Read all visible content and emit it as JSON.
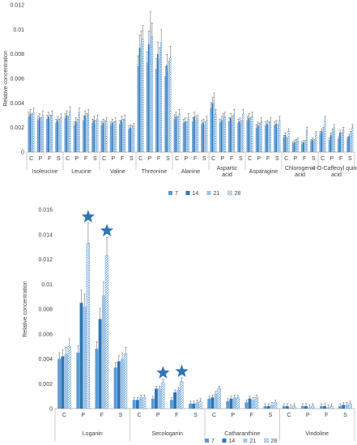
{
  "colors": {
    "d7": "#5b9bd5",
    "d14": "#2e75b6",
    "d21": "#9dc3e6",
    "d28": "#5b9bd5",
    "axis": "#bfbfbf",
    "text": "#404040",
    "star": "#2e75b6"
  },
  "chart_data": [
    {
      "type": "bar",
      "title": "",
      "ylabel": "Relative concentration",
      "ylim": [
        0,
        0.012
      ],
      "yticks": [
        "0",
        "0.002",
        "0.004",
        "0.006",
        "0.008",
        "0.01",
        "0.012"
      ],
      "subcategories": [
        "C",
        "P",
        "F",
        "S"
      ],
      "groups": [
        "Isoleucine",
        "Leucine",
        "Valine",
        "Threonine",
        "Alanine",
        "Aspartic acid",
        "Asparagine",
        "Chlorogenic acid",
        "4-O-Caffeoyl quinic acid"
      ],
      "legend": [
        "7",
        "14",
        "21",
        "28"
      ],
      "legend_position": "bottom",
      "series": [
        {
          "name": "7",
          "values": [
            [
              0.0029,
              0.0026,
              0.0027,
              0.0024
            ],
            [
              0.0028,
              0.0022,
              0.0026,
              0.0024
            ],
            [
              0.0022,
              0.0022,
              0.0023,
              0.0019
            ],
            [
              0.007,
              0.0073,
              0.0068,
              0.0062
            ],
            [
              0.0027,
              0.0024,
              0.0025,
              0.0023
            ],
            [
              0.0036,
              0.0024,
              0.0025,
              0.0024
            ],
            [
              0.0026,
              0.002,
              0.0022,
              0.0022
            ],
            [
              0.0012,
              0.0007,
              0.0007,
              0.0009
            ],
            [
              0.0015,
              0.001,
              0.0011,
              0.0011
            ]
          ]
        },
        {
          "name": "14",
          "values": [
            [
              0.0031,
              0.0028,
              0.0029,
              0.0026
            ],
            [
              0.003,
              0.0025,
              0.003,
              0.0026
            ],
            [
              0.0024,
              0.0024,
              0.0026,
              0.002
            ],
            [
              0.0085,
              0.0088,
              0.008,
              0.0071
            ],
            [
              0.0029,
              0.0025,
              0.0029,
              0.0024
            ],
            [
              0.004,
              0.0026,
              0.0028,
              0.0025
            ],
            [
              0.0028,
              0.0022,
              0.0023,
              0.0023
            ],
            [
              0.0014,
              0.0008,
              0.0008,
              0.001
            ],
            [
              0.0017,
              0.0014,
              0.0016,
              0.0013
            ]
          ]
        },
        {
          "name": "21",
          "values": [
            [
              0.0028,
              0.0025,
              0.0027,
              0.0024
            ],
            [
              0.0026,
              0.0024,
              0.0028,
              0.0023
            ],
            [
              0.0023,
              0.0022,
              0.0024,
              0.0019
            ],
            [
              0.0088,
              0.0102,
              0.0076,
              0.0066
            ],
            [
              0.0026,
              0.0022,
              0.0026,
              0.0022
            ],
            [
              0.0043,
              0.0028,
              0.0026,
              0.0023
            ],
            [
              0.0025,
              0.0021,
              0.0022,
              0.002
            ],
            [
              0.001,
              0.0009,
              0.0008,
              0.0009
            ],
            [
              0.0018,
              0.0017,
              0.0014,
              0.0015
            ]
          ]
        },
        {
          "name": "28",
          "values": [
            [
              0.0032,
              0.003,
              0.003,
              0.0028
            ],
            [
              0.0033,
              0.0032,
              0.0031,
              0.0027
            ],
            [
              0.0025,
              0.0025,
              0.0027,
              0.0021
            ],
            [
              0.0092,
              0.0094,
              0.0089,
              0.0077
            ],
            [
              0.0031,
              0.0028,
              0.0027,
              0.0026
            ],
            [
              0.0031,
              0.0029,
              0.0031,
              0.0031
            ],
            [
              0.0029,
              0.0025,
              0.0025,
              0.0026
            ],
            [
              0.0017,
              0.001,
              0.0018,
              0.0015
            ],
            [
              0.0026,
              0.002,
              0.0018,
              0.002
            ]
          ]
        }
      ]
    },
    {
      "type": "bar",
      "title": "",
      "ylabel": "Relative concentration",
      "ylim": [
        0,
        0.016
      ],
      "yticks": [
        "0",
        "0.002",
        "0.004",
        "0.006",
        "0.008",
        "0.01",
        "0.012",
        "0.014",
        "0.016"
      ],
      "subcategories": [
        "C",
        "P",
        "F",
        "S"
      ],
      "groups": [
        "Loganin",
        "Secologanin",
        "Catharanthine",
        "Vindoline"
      ],
      "legend": [
        "7",
        "14",
        "21",
        "28"
      ],
      "legend_position": "bottom",
      "significance_markers": [
        [
          "Loganin",
          "P"
        ],
        [
          "Loganin",
          "F"
        ],
        [
          "Secologanin",
          "P"
        ],
        [
          "Secologanin",
          "F"
        ]
      ],
      "series": [
        {
          "name": "7",
          "values": [
            [
              0.004,
              0.0045,
              0.0048,
              0.0033
            ],
            [
              0.0007,
              0.0008,
              0.0007,
              0.0004
            ],
            [
              0.0008,
              0.0006,
              0.0005,
              0.0002
            ],
            [
              0.0002,
              0.0002,
              0.0002,
              0.0002
            ]
          ]
        },
        {
          "name": "14",
          "values": [
            [
              0.0042,
              0.0085,
              0.0072,
              0.0038
            ],
            [
              0.0007,
              0.0016,
              0.0013,
              0.0004
            ],
            [
              0.0009,
              0.0008,
              0.0008,
              0.0002
            ],
            [
              0.0002,
              0.0002,
              0.0002,
              0.0003
            ]
          ]
        },
        {
          "name": "21",
          "values": [
            [
              0.0044,
              0.0082,
              0.0091,
              0.004
            ],
            [
              0.0009,
              0.0016,
              0.0015,
              0.0005
            ],
            [
              0.0012,
              0.0009,
              0.0007,
              0.0003
            ],
            [
              0.0001,
              0.0001,
              0.0001,
              0.0003
            ]
          ]
        },
        {
          "name": "28",
          "values": [
            [
              0.005,
              0.0133,
              0.0123,
              0.0044
            ],
            [
              0.0009,
              0.0021,
              0.0022,
              0.0006
            ],
            [
              0.0016,
              0.0009,
              0.0009,
              0.0005
            ],
            [
              0.0002,
              0.0002,
              0.0002,
              0.0004
            ]
          ]
        }
      ]
    }
  ]
}
